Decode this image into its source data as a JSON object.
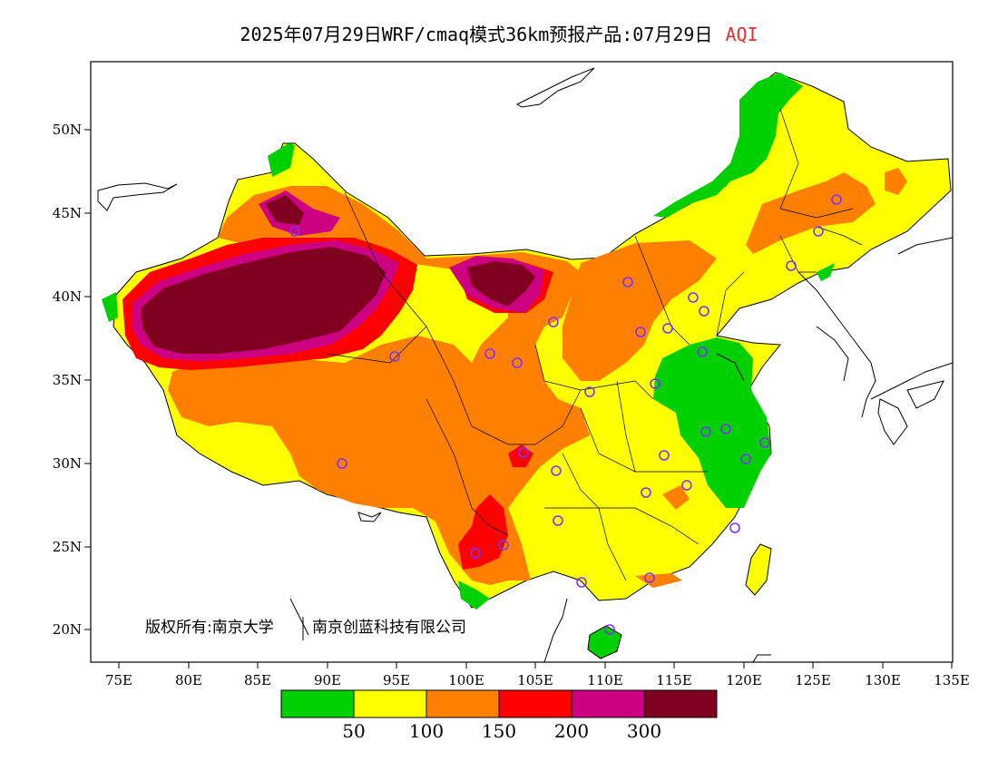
{
  "title": {
    "main": "2025年07月29日WRF/cmaq模式36km预报产品:07月29日",
    "variable": "AQI"
  },
  "axes": {
    "x_ticks": [
      "75E",
      "80E",
      "85E",
      "90E",
      "95E",
      "100E",
      "105E",
      "110E",
      "115E",
      "120E",
      "125E",
      "130E",
      "135E"
    ],
    "y_ticks": [
      "50N",
      "45N",
      "40N",
      "35N",
      "30N",
      "25N",
      "20N"
    ]
  },
  "copyright": {
    "left": "版权所有:南京大学",
    "right": "南京创蓝科技有限公司"
  },
  "legend": {
    "colors": [
      "#00d000",
      "#ffff00",
      "#ff8000",
      "#ff0000",
      "#cc0080",
      "#800020"
    ],
    "labels": [
      "50",
      "100",
      "150",
      "200",
      "300"
    ]
  },
  "colors": {
    "good": "#00d000",
    "moderate": "#ffff00",
    "light": "#ff8000",
    "medium": "#ff0000",
    "heavy": "#cc0080",
    "severe": "#800020",
    "title_accent": "#e03030"
  }
}
